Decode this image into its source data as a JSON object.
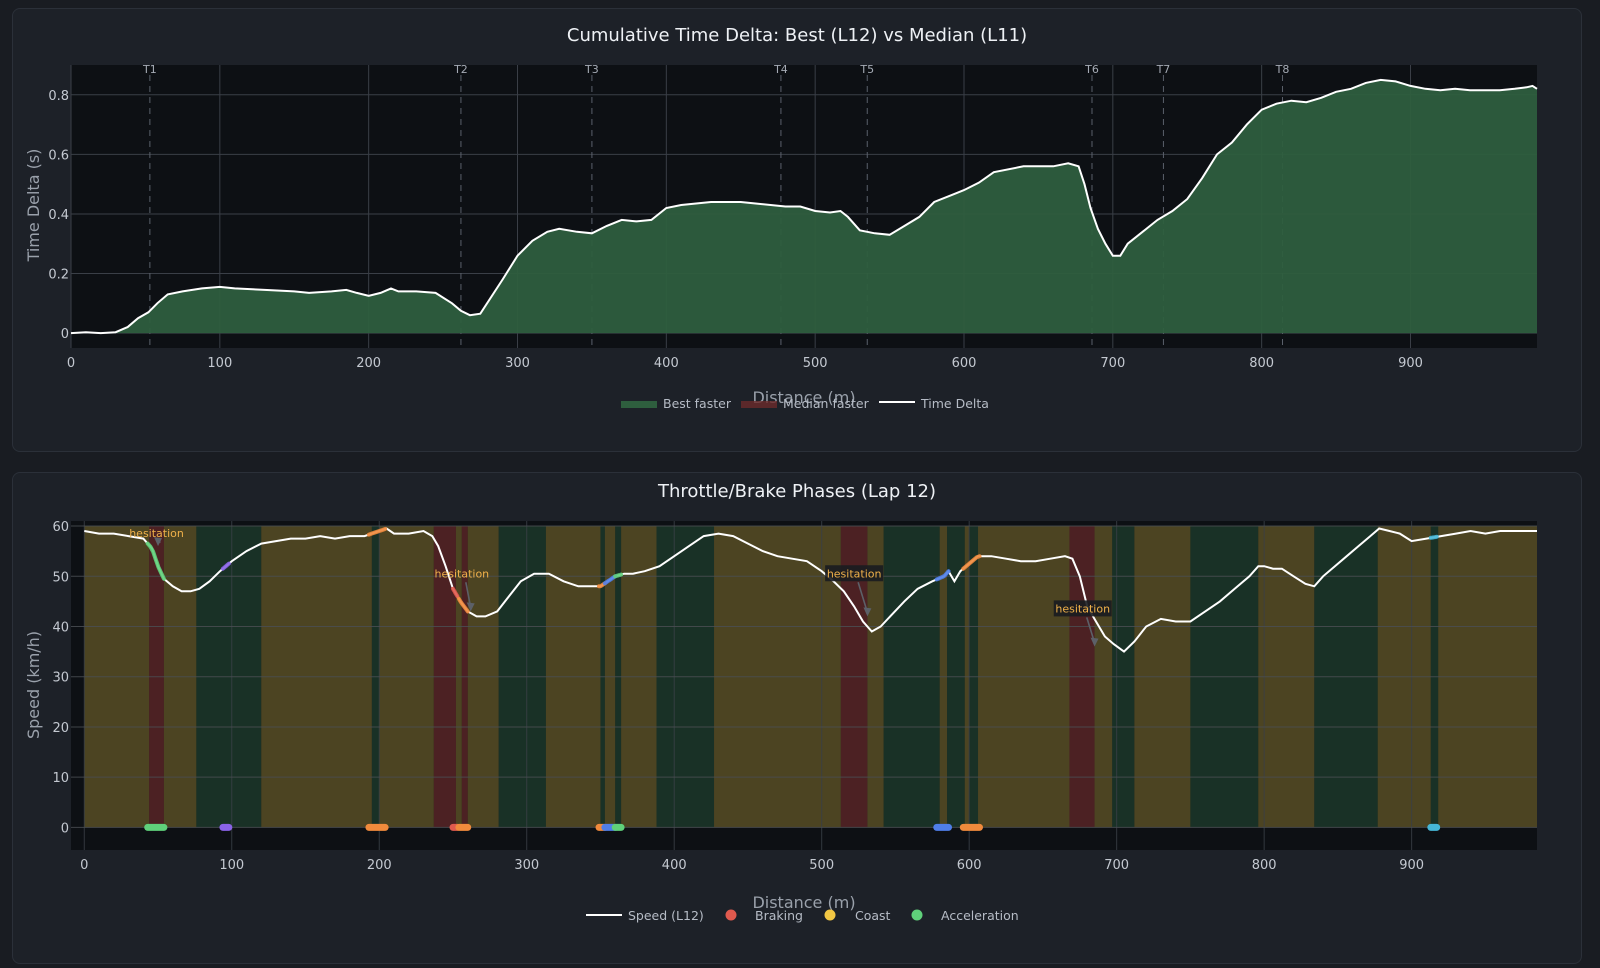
{
  "chart_data": [
    {
      "type": "area",
      "title": "Cumulative Time Delta: Best (L12) vs Median (L11)",
      "xlabel": "Distance (m)",
      "ylabel": "Time Delta (s)",
      "xlim": [
        0,
        985
      ],
      "ylim": [
        -0.05,
        0.9
      ],
      "x_ticks": [
        0,
        100,
        200,
        300,
        400,
        500,
        600,
        700,
        800,
        900
      ],
      "y_ticks": [
        0,
        0.2,
        0.4,
        0.6,
        0.8
      ],
      "y_tick_labels": [
        "0",
        "0.2",
        "0.4",
        "0.6",
        "0.8"
      ],
      "grid": true,
      "legend_position": "bottom-center",
      "legend": [
        "Best faster",
        "Median faster",
        "Time Delta"
      ],
      "colors": {
        "best_faster": "#2e5e3e",
        "median_faster": "#6b2b2b",
        "line": "#ffffff"
      },
      "turns": [
        {
          "label": "T1",
          "x": 53
        },
        {
          "label": "T2",
          "x": 262
        },
        {
          "label": "T3",
          "x": 350
        },
        {
          "label": "T4",
          "x": 477
        },
        {
          "label": "T5",
          "x": 535
        },
        {
          "label": "T6",
          "x": 686
        },
        {
          "label": "T7",
          "x": 734
        },
        {
          "label": "T8",
          "x": 814
        }
      ],
      "series": [
        {
          "name": "Time Delta",
          "x": [
            0,
            10,
            20,
            30,
            38,
            45,
            52,
            58,
            65,
            75,
            88,
            100,
            110,
            130,
            150,
            160,
            175,
            185,
            192,
            200,
            208,
            215,
            220,
            232,
            245,
            256,
            262,
            268,
            275,
            290,
            300,
            310,
            320,
            328,
            340,
            350,
            360,
            370,
            380,
            390,
            400,
            410,
            430,
            450,
            460,
            480,
            490,
            500,
            510,
            517,
            522,
            530,
            540,
            550,
            560,
            570,
            580,
            590,
            595,
            600,
            610,
            620,
            640,
            660,
            670,
            677,
            681,
            685,
            690,
            695,
            700,
            705,
            710,
            720,
            730,
            740,
            750,
            760,
            770,
            780,
            790,
            800,
            810,
            820,
            830,
            840,
            850,
            860,
            870,
            880,
            890,
            900,
            910,
            920,
            930,
            940,
            950,
            960,
            970,
            978,
            982,
            985
          ],
          "y": [
            0.0,
            0.003,
            0.0,
            0.003,
            0.02,
            0.05,
            0.07,
            0.1,
            0.13,
            0.14,
            0.15,
            0.155,
            0.15,
            0.145,
            0.14,
            0.135,
            0.14,
            0.145,
            0.135,
            0.125,
            0.135,
            0.15,
            0.14,
            0.14,
            0.135,
            0.1,
            0.075,
            0.06,
            0.065,
            0.18,
            0.26,
            0.31,
            0.34,
            0.35,
            0.34,
            0.335,
            0.36,
            0.38,
            0.375,
            0.38,
            0.42,
            0.43,
            0.44,
            0.44,
            0.435,
            0.425,
            0.425,
            0.41,
            0.405,
            0.41,
            0.39,
            0.345,
            0.335,
            0.33,
            0.36,
            0.39,
            0.44,
            0.46,
            0.47,
            0.48,
            0.505,
            0.54,
            0.56,
            0.56,
            0.57,
            0.56,
            0.5,
            0.42,
            0.35,
            0.3,
            0.26,
            0.26,
            0.3,
            0.34,
            0.38,
            0.41,
            0.45,
            0.52,
            0.6,
            0.64,
            0.7,
            0.75,
            0.77,
            0.78,
            0.775,
            0.79,
            0.81,
            0.82,
            0.84,
            0.85,
            0.845,
            0.83,
            0.82,
            0.815,
            0.82,
            0.815,
            0.815,
            0.815,
            0.82,
            0.825,
            0.83,
            0.82
          ]
        }
      ]
    },
    {
      "type": "line",
      "title": "Throttle/Brake Phases (Lap 12)",
      "xlabel": "Distance (m)",
      "ylabel": "Speed (km/h)",
      "xlim": [
        -9,
        985
      ],
      "ylim": [
        -4.5,
        61
      ],
      "x_ticks": [
        0,
        100,
        200,
        300,
        400,
        500,
        600,
        700,
        800,
        900
      ],
      "y_ticks": [
        0,
        10,
        20,
        30,
        40,
        50,
        60
      ],
      "grid": true,
      "legend_position": "bottom-center",
      "legend": [
        "Speed (L12)",
        "Braking",
        "Coast",
        "Acceleration"
      ],
      "colors": {
        "braking": "#e05a4e",
        "coast": "#f2c744",
        "acceleration": "#5fd07a",
        "line": "#ffffff"
      },
      "phases": [
        {
          "type": "coast",
          "x0": 0,
          "x1": 44
        },
        {
          "type": "brake",
          "x0": 44,
          "x1": 54
        },
        {
          "type": "coast",
          "x0": 54,
          "x1": 76
        },
        {
          "type": "accel",
          "x0": 76,
          "x1": 120
        },
        {
          "type": "coast",
          "x0": 120,
          "x1": 195
        },
        {
          "type": "accel",
          "x0": 195,
          "x1": 200
        },
        {
          "type": "coast",
          "x0": 200,
          "x1": 237
        },
        {
          "type": "brake",
          "x0": 237,
          "x1": 252
        },
        {
          "type": "coast",
          "x0": 252,
          "x1": 256
        },
        {
          "type": "brake",
          "x0": 256,
          "x1": 260
        },
        {
          "type": "coast",
          "x0": 260,
          "x1": 281
        },
        {
          "type": "accel",
          "x0": 281,
          "x1": 313
        },
        {
          "type": "coast",
          "x0": 313,
          "x1": 350
        },
        {
          "type": "accel",
          "x0": 350,
          "x1": 353
        },
        {
          "type": "coast",
          "x0": 353,
          "x1": 360
        },
        {
          "type": "accel",
          "x0": 360,
          "x1": 364
        },
        {
          "type": "coast",
          "x0": 364,
          "x1": 388
        },
        {
          "type": "accel",
          "x0": 388,
          "x1": 427
        },
        {
          "type": "coast",
          "x0": 427,
          "x1": 513
        },
        {
          "type": "brake",
          "x0": 513,
          "x1": 531
        },
        {
          "type": "coast",
          "x0": 531,
          "x1": 542
        },
        {
          "type": "accel",
          "x0": 542,
          "x1": 580
        },
        {
          "type": "coast",
          "x0": 580,
          "x1": 585
        },
        {
          "type": "accel",
          "x0": 585,
          "x1": 597
        },
        {
          "type": "coast",
          "x0": 597,
          "x1": 600
        },
        {
          "type": "accel",
          "x0": 600,
          "x1": 606
        },
        {
          "type": "coast",
          "x0": 606,
          "x1": 668
        },
        {
          "type": "brake",
          "x0": 668,
          "x1": 685
        },
        {
          "type": "coast",
          "x0": 685,
          "x1": 697
        },
        {
          "type": "accel",
          "x0": 697,
          "x1": 712
        },
        {
          "type": "coast",
          "x0": 712,
          "x1": 750
        },
        {
          "type": "accel",
          "x0": 750,
          "x1": 796
        },
        {
          "type": "coast",
          "x0": 796,
          "x1": 834
        },
        {
          "type": "accel",
          "x0": 834,
          "x1": 877
        },
        {
          "type": "coast",
          "x0": 877,
          "x1": 913
        },
        {
          "type": "accel",
          "x0": 913,
          "x1": 918
        },
        {
          "type": "coast",
          "x0": 918,
          "x1": 985
        }
      ],
      "event_markers": [
        {
          "x0": 43,
          "x1": 54,
          "color": "#5fd07a"
        },
        {
          "x0": 94,
          "x1": 98,
          "color": "#8a63e8"
        },
        {
          "x0": 193,
          "x1": 204,
          "color": "#f08a3c"
        },
        {
          "x0": 250,
          "x1": 253,
          "color": "#e05a4e"
        },
        {
          "x0": 254,
          "x1": 260,
          "color": "#f08a3c"
        },
        {
          "x0": 349,
          "x1": 353,
          "color": "#f08a3c"
        },
        {
          "x0": 353,
          "x1": 360,
          "color": "#4f7ee8"
        },
        {
          "x0": 360,
          "x1": 364,
          "color": "#5fd07a"
        },
        {
          "x0": 578,
          "x1": 586,
          "color": "#4f7ee8"
        },
        {
          "x0": 596,
          "x1": 607,
          "color": "#f08a3c"
        },
        {
          "x0": 913,
          "x1": 917,
          "color": "#46b6d6"
        }
      ],
      "annotations": [
        {
          "text": "hesitation",
          "x": 50,
          "y": 56,
          "label_x": 49,
          "label_y": 58,
          "boxed": false
        },
        {
          "text": "hesitation",
          "x": 262,
          "y": 43,
          "label_x": 256,
          "label_y": 50,
          "boxed": false
        },
        {
          "text": "hesitation",
          "x": 531,
          "y": 42,
          "label_x": 522,
          "label_y": 50,
          "boxed": true
        },
        {
          "text": "hesitation",
          "x": 685,
          "y": 36,
          "label_x": 677,
          "label_y": 43,
          "boxed": true
        }
      ],
      "series": [
        {
          "name": "Speed (L12)",
          "x": [
            0,
            10,
            20,
            30,
            40,
            46,
            50,
            54,
            60,
            66,
            72,
            78,
            85,
            92,
            100,
            110,
            120,
            130,
            140,
            150,
            160,
            170,
            180,
            190,
            200,
            205,
            210,
            220,
            230,
            236,
            240,
            245,
            250,
            255,
            260,
            266,
            272,
            280,
            288,
            296,
            305,
            315,
            325,
            335,
            345,
            350,
            355,
            360,
            366,
            372,
            380,
            390,
            400,
            410,
            420,
            430,
            440,
            450,
            460,
            470,
            480,
            490,
            500,
            508,
            515,
            522,
            528,
            534,
            540,
            548,
            556,
            565,
            575,
            583,
            586,
            590,
            594,
            598,
            602,
            606,
            615,
            625,
            635,
            645,
            655,
            665,
            670,
            675,
            680,
            686,
            692,
            698,
            705,
            712,
            720,
            730,
            740,
            750,
            760,
            770,
            780,
            790,
            796,
            800,
            806,
            812,
            820,
            828,
            834,
            840,
            848,
            856,
            864,
            872,
            878,
            885,
            892,
            900,
            910,
            920,
            930,
            940,
            950,
            960,
            970,
            985
          ],
          "y": [
            59,
            58.5,
            58.5,
            58,
            57.5,
            55.5,
            52,
            49.5,
            48,
            47,
            47,
            47.5,
            49,
            51,
            53,
            55,
            56.5,
            57,
            57.5,
            57.5,
            58,
            57.5,
            58,
            58,
            59,
            59.5,
            58.5,
            58.5,
            59,
            58,
            56,
            52,
            47.5,
            45,
            43,
            42,
            42,
            43,
            46,
            49,
            50.5,
            50.5,
            49,
            48,
            48,
            48,
            49,
            50,
            50.5,
            50.5,
            51,
            52,
            54,
            56,
            58,
            58.5,
            58,
            56.5,
            55,
            54,
            53.5,
            53,
            51,
            49,
            47,
            44,
            41,
            39,
            40,
            42.5,
            45,
            47.5,
            49,
            50,
            51,
            49,
            51,
            52,
            53,
            54,
            54,
            53.5,
            53,
            53,
            53.5,
            54,
            53.5,
            50,
            44,
            41,
            38,
            36.5,
            35,
            37,
            40,
            41.5,
            41,
            41,
            43,
            45,
            47.5,
            50,
            52,
            52,
            51.5,
            51.5,
            50,
            48.5,
            48,
            50,
            52,
            54,
            56,
            58,
            59.5,
            59,
            58.5,
            57,
            57.5,
            58,
            58.5,
            59,
            58.5,
            59,
            59,
            59
          ]
        }
      ]
    }
  ]
}
